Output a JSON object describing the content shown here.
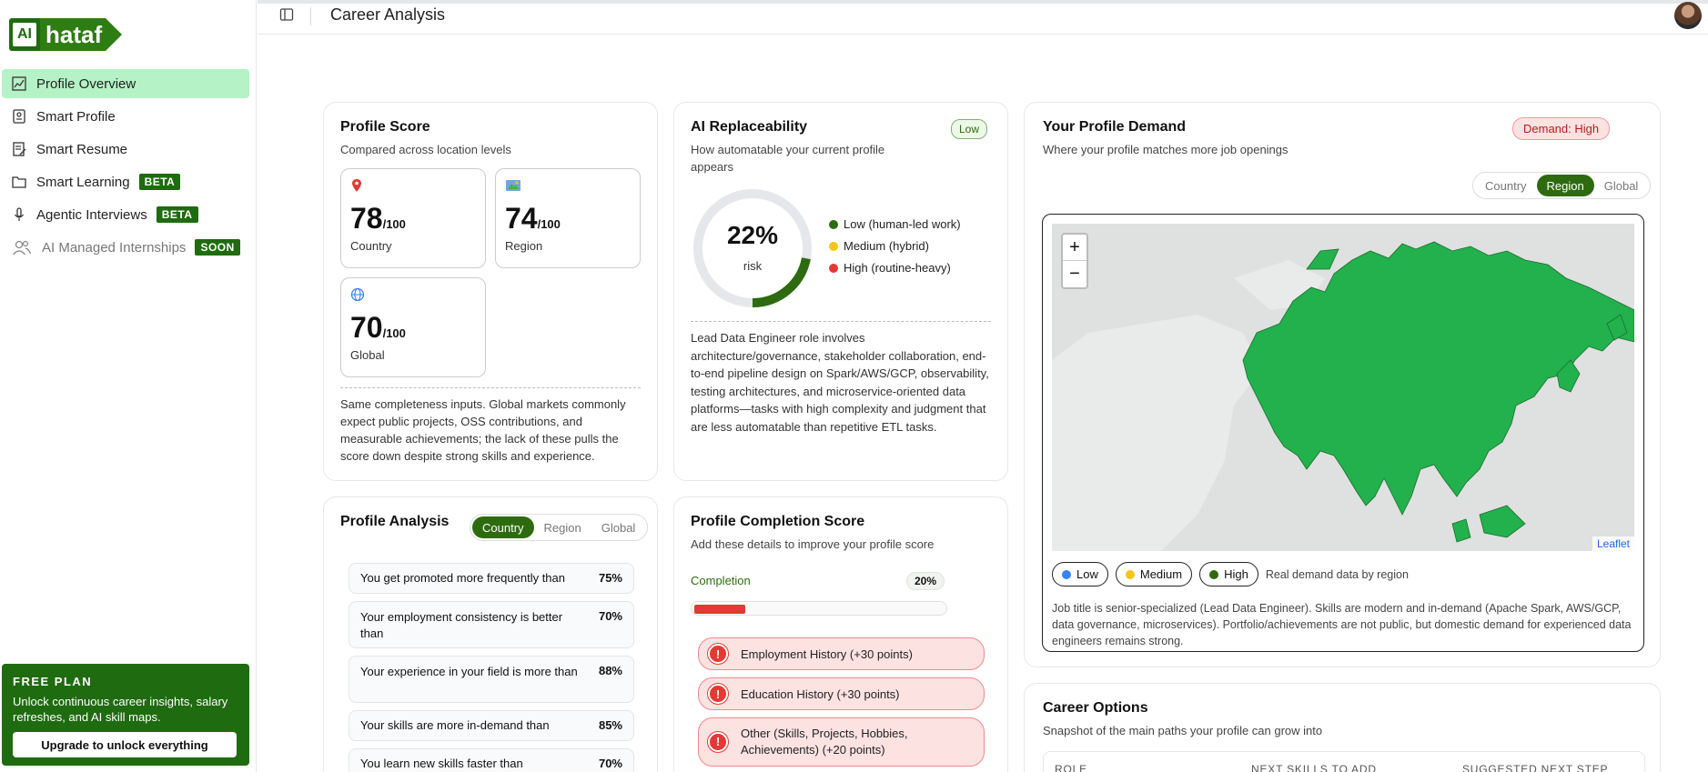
{
  "brand": {
    "ai": "AI",
    "name": "hataf"
  },
  "sidebar": {
    "items": [
      {
        "label": "Profile Overview",
        "icon": "chart-icon",
        "active": true
      },
      {
        "label": "Smart Profile",
        "icon": "profile-card-icon"
      },
      {
        "label": "Smart Resume",
        "icon": "resume-icon"
      },
      {
        "label": "Smart Learning",
        "icon": "folder-icon",
        "badge": "BETA"
      },
      {
        "label": "Agentic Interviews",
        "icon": "microphone-icon",
        "badge": "BETA"
      },
      {
        "label": "AI Managed Internships",
        "icon": "users-icon",
        "badge": "SOON"
      }
    ],
    "plan": {
      "title": "FREE PLAN",
      "text": "Unlock continuous career insights, salary refreshes, and AI skill maps.",
      "button": "Upgrade to unlock everything"
    }
  },
  "header": {
    "title": "Career Analysis"
  },
  "profile_score": {
    "title": "Profile Score",
    "subtitle": "Compared across location levels",
    "out_of": "/100",
    "scores": [
      {
        "value": "78",
        "label": "Country",
        "icon": "pin-icon"
      },
      {
        "value": "74",
        "label": "Region",
        "icon": "map-icon"
      },
      {
        "value": "70",
        "label": "Global",
        "icon": "globe-icon"
      }
    ],
    "note": "Same completeness inputs. Global markets commonly expect public projects, OSS contributions, and measurable achievements; the lack of these pulls the score down despite strong skills and experience."
  },
  "ai_replaceability": {
    "title": "AI Replaceability",
    "subtitle": "How automatable your current profile appears",
    "level": "Low",
    "risk_percent": 22,
    "risk_value": "22%",
    "risk_label": "risk",
    "legend": [
      {
        "label": "Low (human-led work)",
        "color": "#2e6b10"
      },
      {
        "label": "Medium (hybrid)",
        "color": "#f5c518"
      },
      {
        "label": "High (routine-heavy)",
        "color": "#e53935"
      }
    ],
    "description": "Lead Data Engineer role involves architecture/governance, stakeholder collaboration, end-to-end pipeline design on Spark/AWS/GCP, observability, testing architectures, and microservice-oriented data platforms—tasks with high complexity and judgment that are less automatable than repetitive ETL tasks."
  },
  "demand": {
    "title": "Your Profile Demand",
    "subtitle": "Where your profile matches more job openings",
    "badge": "Demand: High",
    "tabs": [
      "Country",
      "Region",
      "Global"
    ],
    "active_tab": "Region",
    "zoom_in": "+",
    "zoom_out": "−",
    "attribution": "Leaflet",
    "legend": [
      {
        "label": "Low",
        "color": "#3b82f6"
      },
      {
        "label": "Medium",
        "color": "#f5c518"
      },
      {
        "label": "High",
        "color": "#2e6b10"
      }
    ],
    "legend_note": "Real demand data by region",
    "description": "Job title is senior-specialized (Lead Data Engineer). Skills are modern and in-demand (Apache Spark, AWS/GCP, data governance, microservices). Portfolio/achievements are not public, but domestic demand for experienced data engineers remains strong."
  },
  "analysis": {
    "title": "Profile Analysis",
    "tabs": [
      "Country",
      "Region",
      "Global"
    ],
    "active_tab": "Country",
    "rows": [
      {
        "text": "You get promoted more frequently than",
        "value": "75%"
      },
      {
        "text": "Your employment consistency is better than",
        "value": "70%"
      },
      {
        "text": "Your experience in your field is more than",
        "value": "88%"
      },
      {
        "text": "Your skills are more in-demand than",
        "value": "85%"
      },
      {
        "text": "You learn new skills faster than",
        "value": "70%"
      }
    ]
  },
  "completion": {
    "title": "Profile Completion Score",
    "subtitle": "Add these details to improve your profile score",
    "label": "Completion",
    "percent": 20,
    "value": "20%",
    "items": [
      "Employment History (+30 points)",
      "Education History (+30 points)",
      "Other (Skills, Projects, Hobbies, Achievements) (+20 points)"
    ]
  },
  "career_options": {
    "title": "Career Options",
    "subtitle": "Snapshot of the main paths your profile can grow into",
    "columns": [
      "ROLE",
      "NEXT SKILLS TO ADD",
      "SUGGESTED NEXT STEP"
    ]
  }
}
